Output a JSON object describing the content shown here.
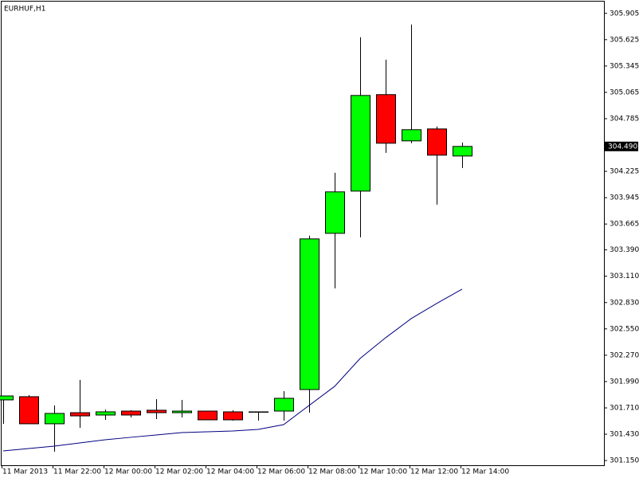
{
  "chart_data": {
    "type": "candlestick",
    "title": "EURHUF,H1",
    "categories": [
      "11 Mar 2013",
      null,
      "11 Mar 22:00",
      null,
      "12 Mar 00:00",
      null,
      "12 Mar 02:00",
      null,
      "12 Mar 04:00",
      null,
      "12 Mar 06:00",
      null,
      "12 Mar 08:00",
      null,
      "12 Mar 10:00",
      null,
      "12 Mar 12:00",
      null,
      "12 Mar 14:00"
    ],
    "open": [
      301.795,
      301.829,
      301.541,
      301.659,
      301.634,
      301.676,
      301.685,
      301.659,
      301.676,
      301.668,
      301.668,
      301.676,
      301.905,
      303.566,
      304.015,
      305.041,
      304.549,
      304.676,
      304.388
    ],
    "high": [
      301.84,
      301.846,
      301.736,
      302.007,
      301.693,
      301.685,
      301.803,
      301.795,
      301.676,
      301.685,
      301.668,
      301.888,
      303.541,
      304.21,
      305.651,
      305.413,
      305.786,
      304.702,
      304.532
    ],
    "low": [
      301.54,
      301.541,
      301.244,
      301.498,
      301.583,
      301.608,
      301.591,
      301.608,
      301.583,
      301.574,
      301.574,
      301.574,
      301.659,
      302.981,
      303.524,
      304.422,
      304.524,
      303.871,
      304.261
    ],
    "close": [
      301.837,
      301.541,
      301.651,
      301.625,
      301.668,
      301.634,
      301.659,
      301.676,
      301.583,
      301.583,
      301.668,
      301.812,
      303.507,
      304.007,
      305.032,
      304.524,
      304.668,
      304.397,
      304.49
    ],
    "up_color": "#00ff00",
    "down_color": "#ff0000",
    "moving_average": {
      "color": "#000080",
      "values": [
        301.252,
        301.278,
        301.303,
        301.337,
        301.371,
        301.397,
        301.422,
        301.447,
        301.456,
        301.464,
        301.481,
        301.532,
        301.736,
        301.939,
        302.236,
        302.456,
        302.659,
        302.82,
        302.973
      ]
    },
    "ylim": [
      301.1,
      306.03
    ],
    "yticks": [
      305.905,
      305.625,
      305.345,
      305.065,
      304.785,
      304.225,
      303.945,
      303.665,
      {
        "value": 303.39,
        "label": "303.390"
      },
      {
        "value": 303.11,
        "label": "303.110"
      },
      {
        "value": 302.83,
        "label": "302.830"
      },
      {
        "value": 302.55,
        "label": "302.550"
      },
      {
        "value": 302.27,
        "label": "302.270"
      },
      {
        "value": 301.99,
        "label": "301.990"
      },
      {
        "value": 301.71,
        "label": "301.710"
      },
      {
        "value": 301.43,
        "label": "301.430"
      },
      {
        "value": 301.15,
        "label": "301.150"
      }
    ],
    "last_price": {
      "value": 304.49,
      "label": "304.490"
    }
  }
}
